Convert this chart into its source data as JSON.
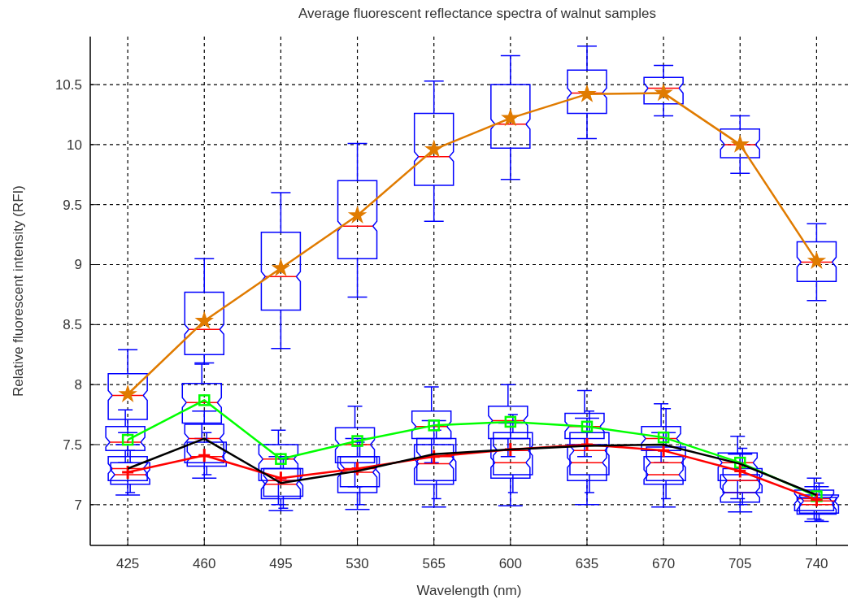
{
  "chart_data": {
    "type": "box",
    "title": "Average fluorescent reflectance spectra of walnut samples",
    "xlabel": "Wavelength (nm)",
    "ylabel": "Relative fluorescent intensity (RFI)",
    "categories": [
      "425",
      "460",
      "495",
      "530",
      "565",
      "600",
      "635",
      "670",
      "705",
      "740"
    ],
    "ylim": [
      6.66,
      10.9
    ],
    "yticks": [
      7,
      7.5,
      8,
      8.5,
      9,
      9.5,
      10,
      10.5
    ],
    "grid": true,
    "series": [
      {
        "type": "box",
        "color": "#0000ff",
        "boxes": [
          {
            "low": 7.6,
            "q1": 7.71,
            "median": 7.91,
            "q3": 8.09,
            "high": 8.29
          },
          {
            "low": 8.18,
            "q1": 8.25,
            "median": 8.46,
            "q3": 8.77,
            "high": 9.05
          },
          {
            "low": 8.3,
            "q1": 8.62,
            "median": 8.9,
            "q3": 9.27,
            "high": 9.6
          },
          {
            "low": 8.73,
            "q1": 9.05,
            "median": 9.32,
            "q3": 9.7,
            "high": 10.01
          },
          {
            "low": 9.36,
            "q1": 9.66,
            "median": 9.9,
            "q3": 10.26,
            "high": 10.53
          },
          {
            "low": 9.71,
            "q1": 9.97,
            "median": 10.17,
            "q3": 10.5,
            "high": 10.74
          },
          {
            "low": 10.05,
            "q1": 10.26,
            "median": 10.43,
            "q3": 10.62,
            "high": 10.82
          },
          {
            "low": 10.24,
            "q1": 10.34,
            "median": 10.47,
            "q3": 10.56,
            "high": 10.66
          },
          {
            "low": 9.76,
            "q1": 9.89,
            "median": 10.0,
            "q3": 10.13,
            "high": 10.24
          },
          {
            "low": 8.7,
            "q1": 8.86,
            "median": 9.02,
            "q3": 9.19,
            "high": 9.34
          }
        ]
      },
      {
        "type": "box",
        "color": "#0000ff",
        "boxes": [
          {
            "low": 7.35,
            "q1": 7.45,
            "median": 7.52,
            "q3": 7.65,
            "high": 7.79
          },
          {
            "low": 7.55,
            "q1": 7.68,
            "median": 7.85,
            "q3": 8.01,
            "high": 8.17
          },
          {
            "low": 7.0,
            "q1": 7.2,
            "median": 7.38,
            "q3": 7.5,
            "high": 7.62
          },
          {
            "low": 7.15,
            "q1": 7.35,
            "median": 7.5,
            "q3": 7.64,
            "high": 7.82
          },
          {
            "low": 7.35,
            "q1": 7.55,
            "median": 7.65,
            "q3": 7.78,
            "high": 7.98
          },
          {
            "low": 7.4,
            "q1": 7.55,
            "median": 7.7,
            "q3": 7.82,
            "high": 8.0
          },
          {
            "low": 7.4,
            "q1": 7.55,
            "median": 7.65,
            "q3": 7.76,
            "high": 7.95
          },
          {
            "low": 7.35,
            "q1": 7.45,
            "median": 7.55,
            "q3": 7.65,
            "high": 7.84
          },
          {
            "low": 7.05,
            "q1": 7.2,
            "median": 7.35,
            "q3": 7.43,
            "high": 7.57
          },
          {
            "low": 6.88,
            "q1": 6.95,
            "median": 7.05,
            "q3": 7.12,
            "high": 7.22
          }
        ]
      },
      {
        "type": "box",
        "color": "#0000ff",
        "boxes": [
          {
            "low": 7.08,
            "q1": 7.2,
            "median": 7.3,
            "q3": 7.4,
            "high": 7.5
          },
          {
            "low": 7.22,
            "q1": 7.35,
            "median": 7.55,
            "q3": 7.67,
            "high": 7.78
          },
          {
            "low": 6.95,
            "q1": 7.05,
            "median": 7.17,
            "q3": 7.3,
            "high": 7.4
          },
          {
            "low": 6.96,
            "q1": 7.1,
            "median": 7.27,
            "q3": 7.4,
            "high": 7.55
          },
          {
            "low": 6.98,
            "q1": 7.17,
            "median": 7.34,
            "q3": 7.5,
            "high": 7.7
          },
          {
            "low": 6.99,
            "q1": 7.22,
            "median": 7.35,
            "q3": 7.55,
            "high": 7.68
          },
          {
            "low": 7.0,
            "q1": 7.2,
            "median": 7.35,
            "q3": 7.5,
            "high": 7.72
          },
          {
            "low": 6.98,
            "q1": 7.17,
            "median": 7.25,
            "q3": 7.4,
            "high": 7.6
          },
          {
            "low": 6.94,
            "q1": 7.02,
            "median": 7.1,
            "q3": 7.25,
            "high": 7.42
          },
          {
            "low": 6.86,
            "q1": 6.92,
            "median": 7.0,
            "q3": 7.06,
            "high": 7.15
          }
        ]
      },
      {
        "type": "box",
        "color": "#0000ff",
        "boxes": [
          {
            "low": 7.1,
            "q1": 7.17,
            "median": 7.25,
            "q3": 7.35,
            "high": 7.45
          },
          {
            "low": 7.25,
            "q1": 7.32,
            "median": 7.4,
            "q3": 7.52,
            "high": 7.6
          },
          {
            "low": 6.97,
            "q1": 7.07,
            "median": 7.2,
            "q3": 7.3,
            "high": 7.38
          },
          {
            "low": 7.0,
            "q1": 7.15,
            "median": 7.3,
            "q3": 7.4,
            "high": 7.52
          },
          {
            "low": 7.05,
            "q1": 7.2,
            "median": 7.4,
            "q3": 7.55,
            "high": 7.62
          },
          {
            "low": 7.1,
            "q1": 7.25,
            "median": 7.45,
            "q3": 7.6,
            "high": 7.75
          },
          {
            "low": 7.1,
            "q1": 7.25,
            "median": 7.45,
            "q3": 7.6,
            "high": 7.78
          },
          {
            "low": 7.05,
            "q1": 7.2,
            "median": 7.35,
            "q3": 7.48,
            "high": 7.8
          },
          {
            "low": 7.0,
            "q1": 7.1,
            "median": 7.2,
            "q3": 7.3,
            "high": 7.47
          },
          {
            "low": 6.87,
            "q1": 6.93,
            "median": 7.03,
            "q3": 7.08,
            "high": 7.18
          }
        ]
      },
      {
        "type": "line",
        "color": "#e07b00",
        "marker": "star",
        "values": [
          7.92,
          8.53,
          8.97,
          9.41,
          9.96,
          10.22,
          10.42,
          10.43,
          10.0,
          9.03
        ]
      },
      {
        "type": "line",
        "color": "#00ff00",
        "marker": "square",
        "values": [
          7.54,
          7.87,
          7.38,
          7.53,
          7.66,
          7.69,
          7.65,
          7.56,
          7.35,
          7.07
        ]
      },
      {
        "type": "line",
        "color": "#ff0000",
        "marker": "cross",
        "values": [
          7.27,
          7.41,
          7.22,
          7.3,
          7.4,
          7.46,
          7.5,
          7.45,
          7.28,
          7.04
        ]
      },
      {
        "type": "line",
        "color": "#000000",
        "marker": "none",
        "values": [
          7.3,
          7.55,
          7.18,
          7.28,
          7.42,
          7.46,
          7.49,
          7.5,
          7.34,
          7.08
        ]
      }
    ]
  }
}
